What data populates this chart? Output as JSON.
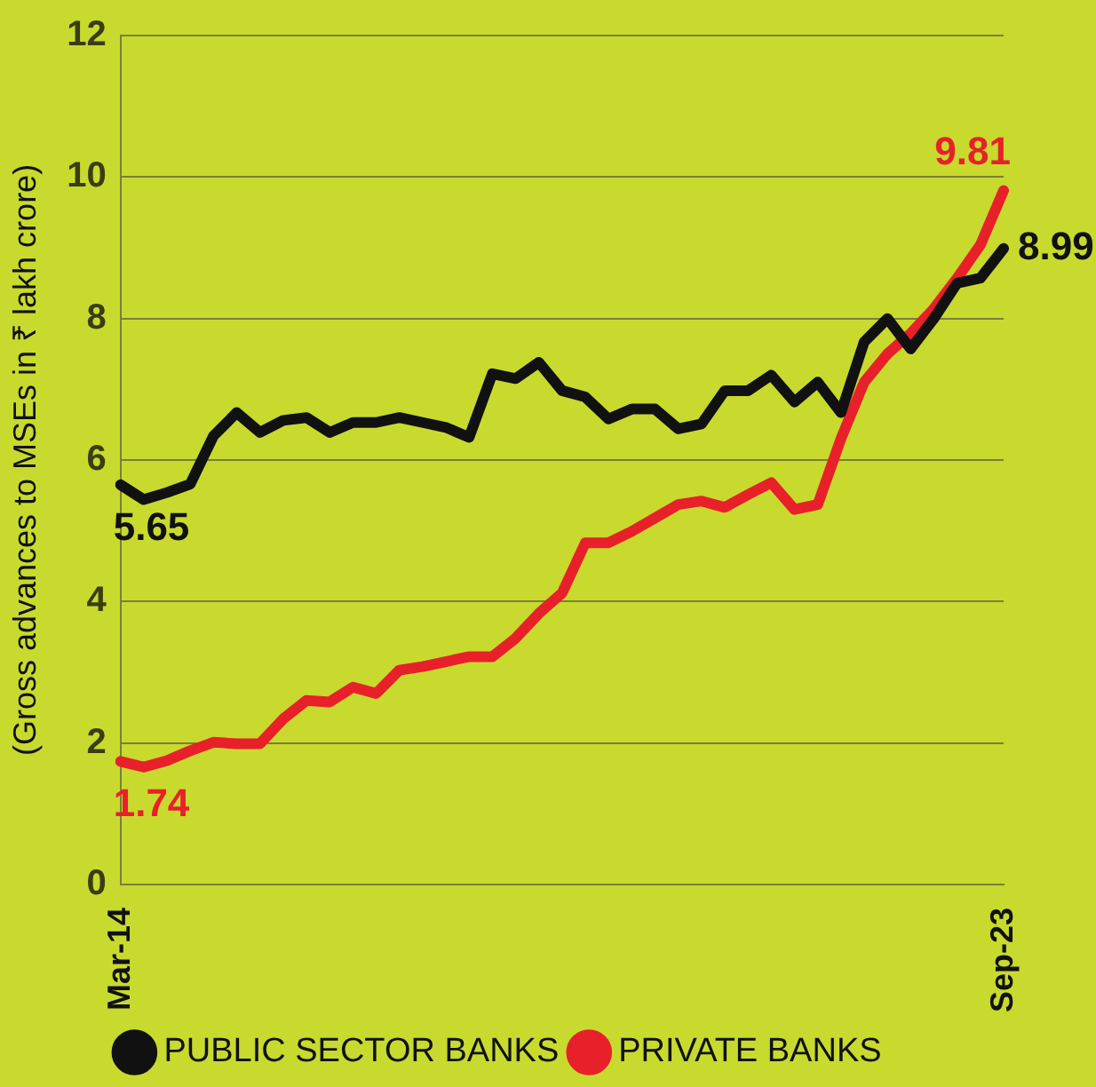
{
  "chart_data": {
    "type": "line",
    "ylabel": "(Gross advances to MSEs in ₹ lakh crore)",
    "categories": [
      "Mar-14",
      null,
      null,
      null,
      null,
      null,
      null,
      null,
      null,
      null,
      null,
      null,
      null,
      null,
      null,
      null,
      null,
      null,
      null,
      null,
      null,
      null,
      null,
      null,
      null,
      null,
      null,
      null,
      null,
      null,
      null,
      null,
      null,
      null,
      null,
      null,
      null,
      null,
      "Sep-23"
    ],
    "series": [
      {
        "name": "PUBLIC SECTOR BANKS",
        "color": "#111111",
        "values": [
          5.65,
          5.44,
          5.54,
          5.66,
          6.34,
          6.67,
          6.39,
          6.56,
          6.6,
          6.39,
          6.53,
          6.53,
          6.6,
          6.53,
          6.46,
          6.32,
          7.22,
          7.15,
          7.38,
          6.98,
          6.89,
          6.58,
          6.72,
          6.72,
          6.44,
          6.51,
          6.98,
          6.98,
          7.2,
          6.82,
          7.1,
          6.67,
          7.67,
          8.0,
          7.57,
          8.0,
          8.5,
          8.57,
          8.99
        ],
        "value_labels": [
          "5.65",
          null,
          null,
          null,
          null,
          null,
          null,
          null,
          null,
          null,
          null,
          null,
          null,
          null,
          null,
          null,
          null,
          null,
          null,
          null,
          null,
          null,
          null,
          null,
          null,
          null,
          null,
          null,
          null,
          null,
          null,
          null,
          null,
          null,
          null,
          null,
          null,
          null,
          "8.99"
        ]
      },
      {
        "name": "PRIVATE BANKS",
        "color": "#e8202a",
        "values": [
          1.74,
          1.66,
          1.75,
          1.89,
          2.01,
          1.99,
          1.99,
          2.34,
          2.6,
          2.58,
          2.79,
          2.7,
          3.03,
          3.08,
          3.15,
          3.22,
          3.22,
          3.48,
          3.83,
          4.12,
          4.83,
          4.83,
          4.99,
          5.18,
          5.37,
          5.42,
          5.33,
          5.51,
          5.68,
          5.3,
          5.37,
          6.3,
          7.1,
          7.5,
          7.79,
          8.14,
          8.57,
          9.04,
          9.81
        ],
        "value_labels": [
          "1.74",
          null,
          null,
          null,
          null,
          null,
          null,
          null,
          null,
          null,
          null,
          null,
          null,
          null,
          null,
          null,
          null,
          null,
          null,
          null,
          null,
          null,
          null,
          null,
          null,
          null,
          null,
          null,
          null,
          null,
          null,
          null,
          null,
          null,
          null,
          null,
          null,
          null,
          "9.81"
        ]
      }
    ],
    "ylim": [
      0,
      12
    ],
    "yticks": [
      0,
      2,
      4,
      6,
      8,
      10,
      12
    ],
    "grid": "y",
    "legend": "bottom",
    "marker": "none",
    "line_style": "solid"
  }
}
